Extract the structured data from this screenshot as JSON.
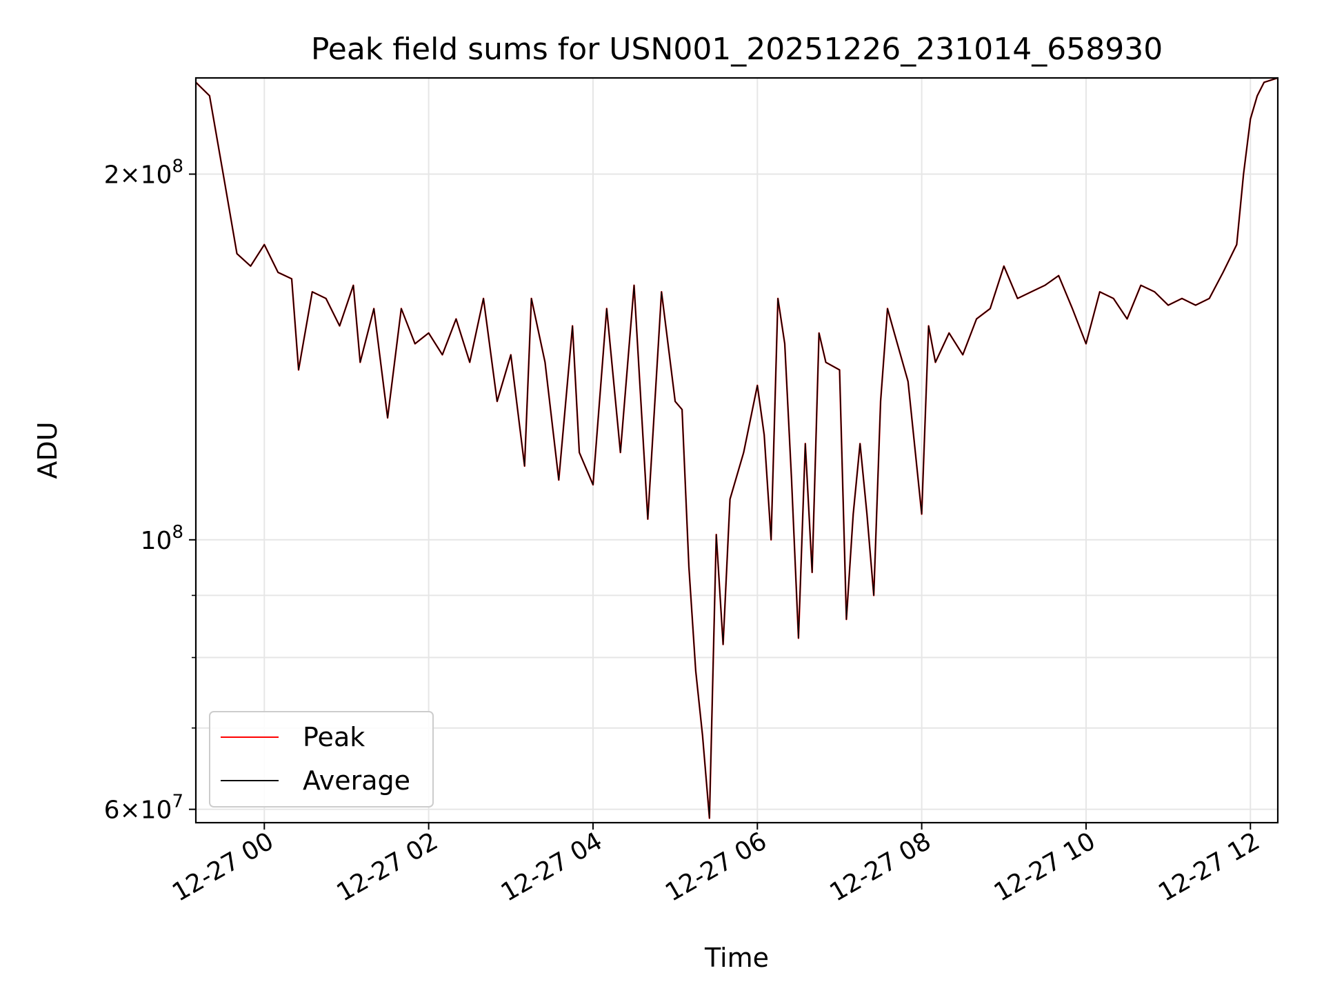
{
  "chart_data": {
    "type": "line",
    "title": "Peak field sums for USN001_20251226_231014_658930",
    "xlabel": "Time",
    "ylabel": "ADU",
    "y_scale": "log",
    "ylim": [
      58500000,
      240000000
    ],
    "xlim": [
      "12-26 23:10",
      "12-27 12:20"
    ],
    "grid": true,
    "legend_position": "lower-left",
    "x_ticks": [
      {
        "t": "12-27 00:00",
        "label": "12-27 00"
      },
      {
        "t": "12-27 02:00",
        "label": "12-27 02"
      },
      {
        "t": "12-27 04:00",
        "label": "12-27 04"
      },
      {
        "t": "12-27 06:00",
        "label": "12-27 06"
      },
      {
        "t": "12-27 08:00",
        "label": "12-27 08"
      },
      {
        "t": "12-27 10:00",
        "label": "12-27 10"
      },
      {
        "t": "12-27 12:00",
        "label": "12-27 12"
      }
    ],
    "y_major_ticks": [
      {
        "value": 60000000,
        "mant": "6",
        "exp": "7"
      },
      {
        "value": 100000000,
        "mant": "",
        "exp": "8"
      },
      {
        "value": 200000000,
        "mant": "2",
        "exp": "8"
      }
    ],
    "y_minor_ticks": [
      70000000,
      80000000,
      90000000
    ],
    "times_sep": " ",
    "x": [
      "12-26 23:10",
      "12-26 23:20",
      "12-26 23:30",
      "12-26 23:40",
      "12-26 23:50",
      "12-27 00:00",
      "12-27 00:10",
      "12-27 00:20",
      "12-27 00:25",
      "12-27 00:35",
      "12-27 00:45",
      "12-27 00:55",
      "12-27 01:05",
      "12-27 01:10",
      "12-27 01:20",
      "12-27 01:30",
      "12-27 01:40",
      "12-27 01:50",
      "12-27 02:00",
      "12-27 02:10",
      "12-27 02:20",
      "12-27 02:30",
      "12-27 02:40",
      "12-27 02:50",
      "12-27 03:00",
      "12-27 03:10",
      "12-27 03:15",
      "12-27 03:25",
      "12-27 03:35",
      "12-27 03:45",
      "12-27 03:50",
      "12-27 04:00",
      "12-27 04:10",
      "12-27 04:20",
      "12-27 04:30",
      "12-27 04:40",
      "12-27 04:50",
      "12-27 05:00",
      "12-27 05:05",
      "12-27 05:10",
      "12-27 05:15",
      "12-27 05:20",
      "12-27 05:25",
      "12-27 05:30",
      "12-27 05:35",
      "12-27 05:40",
      "12-27 05:50",
      "12-27 06:00",
      "12-27 06:05",
      "12-27 06:10",
      "12-27 06:15",
      "12-27 06:20",
      "12-27 06:25",
      "12-27 06:30",
      "12-27 06:35",
      "12-27 06:40",
      "12-27 06:45",
      "12-27 06:50",
      "12-27 07:00",
      "12-27 07:05",
      "12-27 07:10",
      "12-27 07:15",
      "12-27 07:20",
      "12-27 07:25",
      "12-27 07:30",
      "12-27 07:35",
      "12-27 07:40",
      "12-27 07:50",
      "12-27 08:00",
      "12-27 08:05",
      "12-27 08:10",
      "12-27 08:20",
      "12-27 08:30",
      "12-27 08:40",
      "12-27 08:50",
      "12-27 09:00",
      "12-27 09:10",
      "12-27 09:20",
      "12-27 09:30",
      "12-27 09:40",
      "12-27 09:50",
      "12-27 10:00",
      "12-27 10:10",
      "12-27 10:20",
      "12-27 10:30",
      "12-27 10:40",
      "12-27 10:50",
      "12-27 11:00",
      "12-27 11:10",
      "12-27 11:20",
      "12-27 11:30",
      "12-27 11:40",
      "12-27 11:50",
      "12-27 11:55",
      "12-27 12:00",
      "12-27 12:05",
      "12-27 12:10",
      "12-27 12:20"
    ],
    "series": [
      {
        "name": "Peak",
        "color": "#ff0000",
        "values": [
          238000000,
          232000000,
          200000000,
          172000000,
          168000000,
          175000000,
          166000000,
          164000000,
          138000000,
          160000000,
          158000000,
          150000000,
          162000000,
          140000000,
          155000000,
          126000000,
          155000000,
          145000000,
          148000000,
          142000000,
          152000000,
          140000000,
          158000000,
          130000000,
          142000000,
          115000000,
          158000000,
          140000000,
          112000000,
          150000000,
          118000000,
          111000000,
          155000000,
          118000000,
          162000000,
          104000000,
          160000000,
          130000000,
          128000000,
          95000000,
          78000000,
          69000000,
          59000000,
          101000000,
          82000000,
          108000000,
          118000000,
          134000000,
          122000000,
          100000000,
          158000000,
          145000000,
          112000000,
          83000000,
          120000000,
          94000000,
          148000000,
          140000000,
          138000000,
          86000000,
          105000000,
          120000000,
          105000000,
          90000000,
          130000000,
          155000000,
          148000000,
          135000000,
          105000000,
          150000000,
          140000000,
          148000000,
          142000000,
          152000000,
          155000000,
          168000000,
          158000000,
          160000000,
          162000000,
          165000000,
          155000000,
          145000000,
          160000000,
          158000000,
          152000000,
          162000000,
          160000000,
          156000000,
          158000000,
          156000000,
          158000000,
          166000000,
          175000000,
          200000000,
          222000000,
          232000000,
          238000000,
          240000000
        ]
      },
      {
        "name": "Average",
        "color": "#000000",
        "values": [
          238000000,
          232000000,
          200000000,
          172000000,
          168000000,
          175000000,
          166000000,
          164000000,
          138000000,
          160000000,
          158000000,
          150000000,
          162000000,
          140000000,
          155000000,
          126000000,
          155000000,
          145000000,
          148000000,
          142000000,
          152000000,
          140000000,
          158000000,
          130000000,
          142000000,
          115000000,
          158000000,
          140000000,
          112000000,
          150000000,
          118000000,
          111000000,
          155000000,
          118000000,
          162000000,
          104000000,
          160000000,
          130000000,
          128000000,
          95000000,
          78000000,
          69000000,
          59000000,
          101000000,
          82000000,
          108000000,
          118000000,
          134000000,
          122000000,
          100000000,
          158000000,
          145000000,
          112000000,
          83000000,
          120000000,
          94000000,
          148000000,
          140000000,
          138000000,
          86000000,
          105000000,
          120000000,
          105000000,
          90000000,
          130000000,
          155000000,
          148000000,
          135000000,
          105000000,
          150000000,
          140000000,
          148000000,
          142000000,
          152000000,
          155000000,
          168000000,
          158000000,
          160000000,
          162000000,
          165000000,
          155000000,
          145000000,
          160000000,
          158000000,
          152000000,
          162000000,
          160000000,
          156000000,
          158000000,
          156000000,
          158000000,
          166000000,
          175000000,
          200000000,
          222000000,
          232000000,
          238000000,
          240000000
        ]
      }
    ]
  }
}
